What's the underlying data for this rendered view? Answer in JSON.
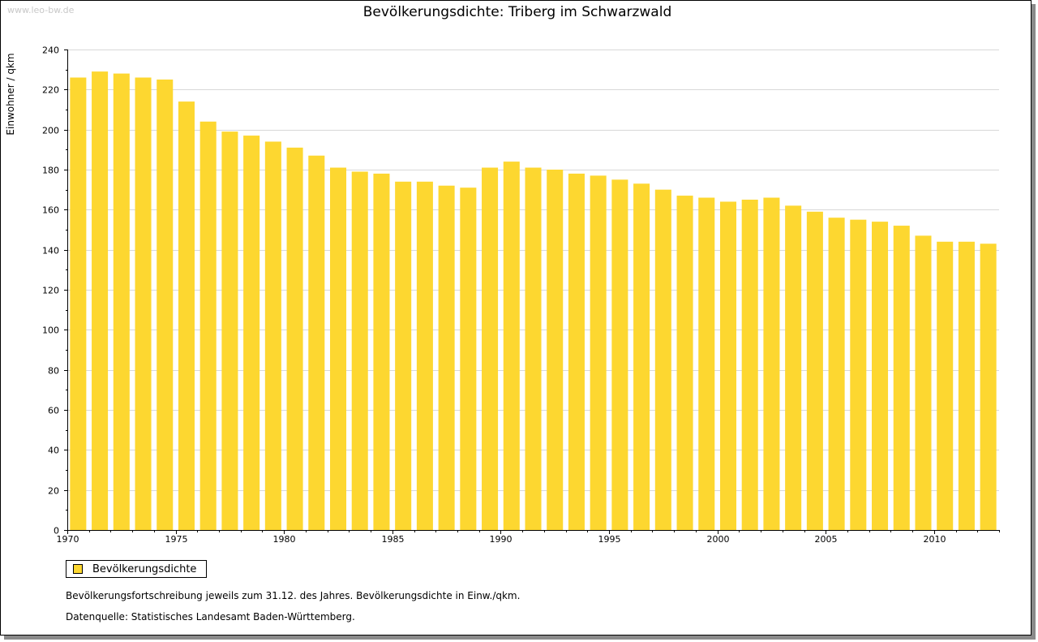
{
  "watermark": "www.leo-bw.de",
  "colors": {
    "bar": "#fdd730",
    "grid": "#d8d8d8",
    "axis": "#000000"
  },
  "chart_data": {
    "type": "bar",
    "title": "Bevölkerungsdichte: Triberg im Schwarzwald",
    "xlabel": "",
    "ylabel": "Einwohner / qkm",
    "ylim": [
      0,
      240
    ],
    "yticks": [
      0,
      20,
      40,
      60,
      80,
      100,
      120,
      140,
      160,
      180,
      200,
      220,
      240
    ],
    "xtick_labels": [
      "1970",
      "1975",
      "1980",
      "1985",
      "1990",
      "1995",
      "2000",
      "2005",
      "2010"
    ],
    "categories": [
      1970,
      1971,
      1972,
      1973,
      1974,
      1975,
      1976,
      1977,
      1978,
      1979,
      1980,
      1981,
      1982,
      1983,
      1984,
      1985,
      1986,
      1987,
      1988,
      1989,
      1990,
      1991,
      1992,
      1993,
      1994,
      1995,
      1996,
      1997,
      1998,
      1999,
      2000,
      2001,
      2002,
      2003,
      2004,
      2005,
      2006,
      2007,
      2008,
      2009,
      2010,
      2011,
      2012
    ],
    "series": [
      {
        "name": "Bevölkerungsdichte",
        "values": [
          226,
          229,
          228,
          226,
          225,
          214,
          204,
          199,
          197,
          194,
          191,
          187,
          181,
          179,
          178,
          174,
          174,
          172,
          171,
          181,
          184,
          181,
          180,
          178,
          177,
          175,
          173,
          170,
          167,
          166,
          164,
          165,
          166,
          162,
          159,
          156,
          155,
          154,
          152,
          147,
          144,
          144,
          143
        ]
      }
    ],
    "grid": true,
    "legend": "bottom-left"
  },
  "legend": {
    "label": "Bevölkerungsdichte"
  },
  "notes": {
    "line1": "Bevölkerungsfortschreibung jeweils zum 31.12. des Jahres. Bevölkerungsdichte in Einw./qkm.",
    "line2": "Datenquelle: Statistisches Landesamt Baden-Württemberg."
  }
}
